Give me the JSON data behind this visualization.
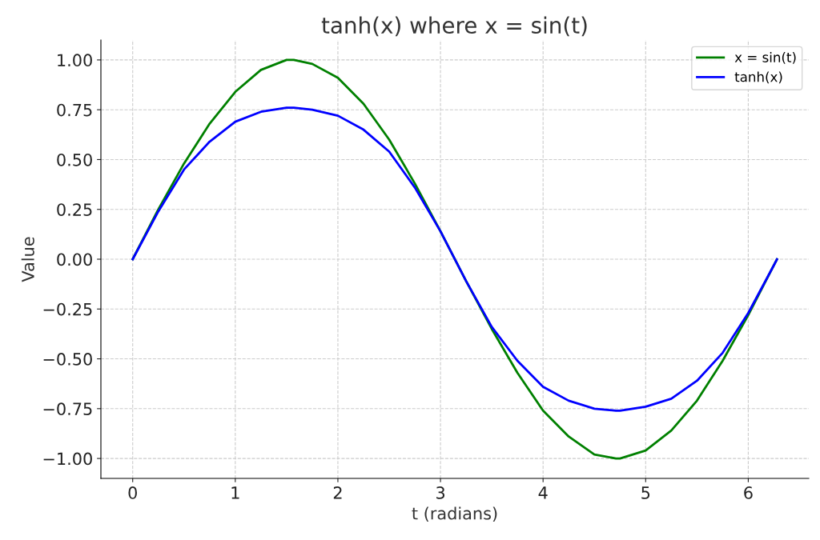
{
  "chart_data": {
    "type": "line",
    "title": "tanh(x) where x = sin(t)",
    "xlabel": "t (radians)",
    "ylabel": "Value",
    "x": [
      0,
      0.25,
      0.5,
      0.75,
      1,
      1.25,
      1.5,
      1.57,
      1.75,
      2,
      2.25,
      2.5,
      2.75,
      3,
      3.25,
      3.5,
      3.75,
      4,
      4.25,
      4.5,
      4.71,
      4.75,
      5,
      5.25,
      5.5,
      5.75,
      6,
      6.25,
      6.28
    ],
    "series": [
      {
        "name": "x = sin(t)",
        "color": "#008000",
        "values": [
          0,
          0.25,
          0.48,
          0.68,
          0.84,
          0.95,
          1.0,
          1.0,
          0.98,
          0.91,
          0.78,
          0.6,
          0.38,
          0.14,
          -0.11,
          -0.35,
          -0.57,
          -0.76,
          -0.89,
          -0.98,
          -1.0,
          -1.0,
          -0.96,
          -0.86,
          -0.71,
          -0.51,
          -0.28,
          -0.03,
          0
        ]
      },
      {
        "name": "tanh(x)",
        "color": "#0000ff",
        "values": [
          0,
          0.24,
          0.45,
          0.59,
          0.69,
          0.74,
          0.76,
          0.76,
          0.75,
          0.72,
          0.65,
          0.54,
          0.36,
          0.14,
          -0.11,
          -0.34,
          -0.51,
          -0.64,
          -0.71,
          -0.75,
          -0.76,
          -0.76,
          -0.74,
          -0.7,
          -0.61,
          -0.47,
          -0.27,
          -0.03,
          0
        ]
      }
    ],
    "xlim": [
      -0.31,
      6.59
    ],
    "ylim": [
      -1.1,
      1.1
    ],
    "xticks": [
      0,
      1,
      2,
      3,
      4,
      5,
      6
    ],
    "yticks": [
      {
        "value": -1,
        "label": "−1.00"
      },
      {
        "value": -0.75,
        "label": "−0.75"
      },
      {
        "value": -0.5,
        "label": "−0.50"
      },
      {
        "value": -0.25,
        "label": "−0.25"
      },
      {
        "value": 0,
        "label": "0.00"
      },
      {
        "value": 0.25,
        "label": "0.25"
      },
      {
        "value": 0.5,
        "label": "0.50"
      },
      {
        "value": 0.75,
        "label": "0.75"
      },
      {
        "value": 1,
        "label": "1.00"
      }
    ],
    "grid": true,
    "legend": "top right",
    "line_style": "solid",
    "marker": "none"
  }
}
